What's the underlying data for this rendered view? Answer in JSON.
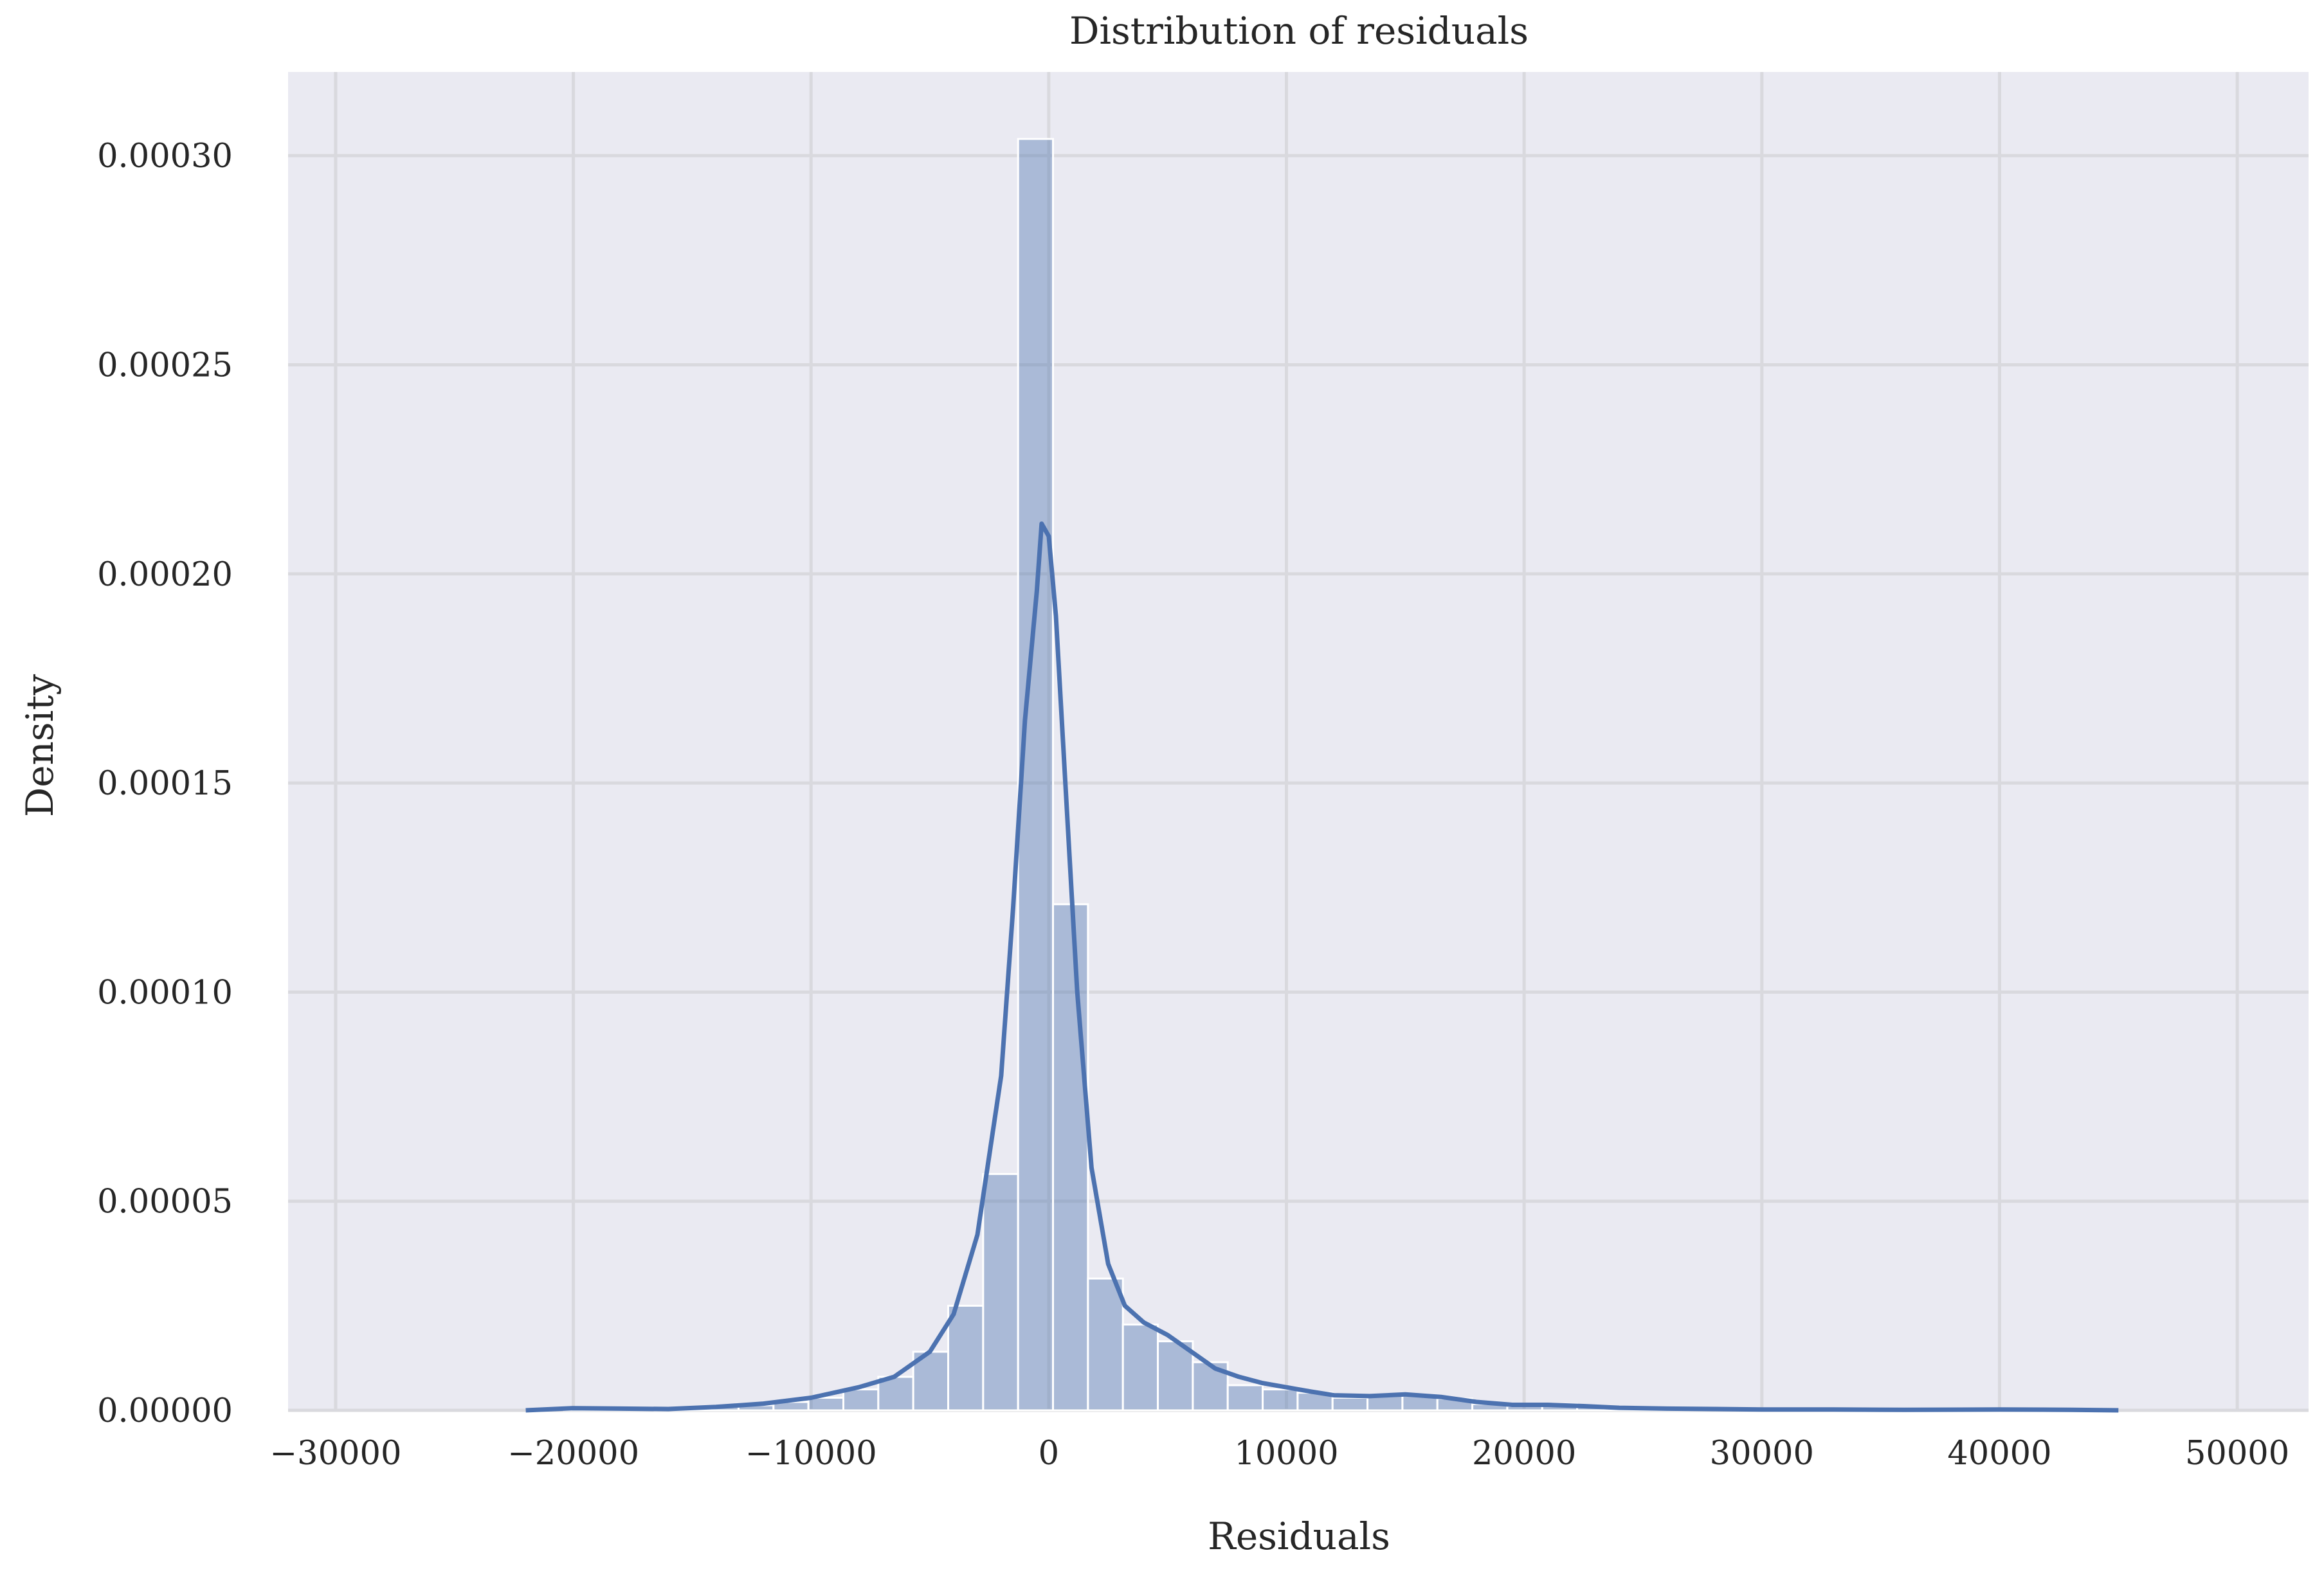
{
  "chart_data": {
    "type": "histogram",
    "title": "Distribution of residuals",
    "xlabel": "Residuals",
    "ylabel": "Density",
    "xlim": [
      -32000,
      53000
    ],
    "ylim": [
      0,
      0.00032
    ],
    "x_ticks": [
      -30000,
      -20000,
      -10000,
      0,
      10000,
      20000,
      30000,
      40000,
      50000
    ],
    "x_tick_labels": [
      "−30000",
      "−20000",
      "−10000",
      "0",
      "10000",
      "20000",
      "30000",
      "40000",
      "50000"
    ],
    "y_ticks": [
      0,
      5e-05,
      0.0001,
      0.00015,
      0.0002,
      0.00025,
      0.0003
    ],
    "y_tick_labels": [
      "0.00000",
      "0.00005",
      "0.00010",
      "0.00015",
      "0.00020",
      "0.00025",
      "0.00030"
    ],
    "grid": true,
    "background": "#eaeaf2",
    "grid_color": "#d9d9de",
    "bar_color": "#4c72b0",
    "bar_opacity": 0.4,
    "line_color": "#4c72b0",
    "bins": [
      {
        "x0": -20400,
        "x1": -18930,
        "density": 5e-07
      },
      {
        "x0": -18930,
        "x1": -17460,
        "density": 4e-07
      },
      {
        "x0": -17460,
        "x1": -15990,
        "density": 3e-07
      },
      {
        "x0": -15990,
        "x1": -14520,
        "density": 5e-07
      },
      {
        "x0": -14520,
        "x1": -13050,
        "density": 8e-07
      },
      {
        "x0": -13050,
        "x1": -11580,
        "density": 1.2e-06
      },
      {
        "x0": -11580,
        "x1": -10110,
        "density": 2e-06
      },
      {
        "x0": -10110,
        "x1": -8640,
        "density": 3e-06
      },
      {
        "x0": -8640,
        "x1": -7170,
        "density": 5e-06
      },
      {
        "x0": -7170,
        "x1": -5700,
        "density": 8e-06
      },
      {
        "x0": -5700,
        "x1": -4230,
        "density": 1.4e-05
      },
      {
        "x0": -4230,
        "x1": -2760,
        "density": 2.5e-05
      },
      {
        "x0": -2760,
        "x1": -1290,
        "density": 5.65e-05
      },
      {
        "x0": -1290,
        "x1": 180,
        "density": 0.000304
      },
      {
        "x0": 180,
        "x1": 1650,
        "density": 0.000121
      },
      {
        "x0": 1650,
        "x1": 3120,
        "density": 3.15e-05
      },
      {
        "x0": 3120,
        "x1": 4590,
        "density": 2.05e-05
      },
      {
        "x0": 4590,
        "x1": 6060,
        "density": 1.65e-05
      },
      {
        "x0": 6060,
        "x1": 7530,
        "density": 1.15e-05
      },
      {
        "x0": 7530,
        "x1": 9000,
        "density": 6e-06
      },
      {
        "x0": 9000,
        "x1": 10470,
        "density": 5e-06
      },
      {
        "x0": 10470,
        "x1": 11940,
        "density": 4.2e-06
      },
      {
        "x0": 11940,
        "x1": 13410,
        "density": 3e-06
      },
      {
        "x0": 13410,
        "x1": 14880,
        "density": 3.5e-06
      },
      {
        "x0": 14880,
        "x1": 16350,
        "density": 3.5e-06
      },
      {
        "x0": 16350,
        "x1": 17820,
        "density": 2.8e-06
      },
      {
        "x0": 17820,
        "x1": 19290,
        "density": 1.5e-06
      },
      {
        "x0": 19290,
        "x1": 20760,
        "density": 1e-06
      },
      {
        "x0": 20760,
        "x1": 22230,
        "density": 1.5e-06
      },
      {
        "x0": 22230,
        "x1": 23700,
        "density": 8e-07
      },
      {
        "x0": 23700,
        "x1": 25170,
        "density": 6e-07
      },
      {
        "x0": 25170,
        "x1": 26640,
        "density": 5e-07
      },
      {
        "x0": 26640,
        "x1": 28110,
        "density": 4e-07
      },
      {
        "x0": 28110,
        "x1": 29580,
        "density": 3e-07
      },
      {
        "x0": 29580,
        "x1": 31050,
        "density": 3e-07
      },
      {
        "x0": 31050,
        "x1": 32520,
        "density": 2e-07
      },
      {
        "x0": 32520,
        "x1": 33990,
        "density": 2e-07
      }
    ],
    "kde": [
      {
        "x": -22000,
        "y": 0.0
      },
      {
        "x": -20000,
        "y": 5e-07
      },
      {
        "x": -18000,
        "y": 4e-07
      },
      {
        "x": -16000,
        "y": 3e-07
      },
      {
        "x": -14000,
        "y": 8e-07
      },
      {
        "x": -12000,
        "y": 1.6e-06
      },
      {
        "x": -10000,
        "y": 3e-06
      },
      {
        "x": -8000,
        "y": 5.5e-06
      },
      {
        "x": -6500,
        "y": 8e-06
      },
      {
        "x": -5000,
        "y": 1.4e-05
      },
      {
        "x": -4000,
        "y": 2.3e-05
      },
      {
        "x": -3000,
        "y": 4.2e-05
      },
      {
        "x": -2000,
        "y": 8e-05
      },
      {
        "x": -1500,
        "y": 0.00012
      },
      {
        "x": -1000,
        "y": 0.000165
      },
      {
        "x": -500,
        "y": 0.000196
      },
      {
        "x": -300,
        "y": 0.000212
      },
      {
        "x": 0,
        "y": 0.000209
      },
      {
        "x": 300,
        "y": 0.00019
      },
      {
        "x": 700,
        "y": 0.00015
      },
      {
        "x": 1200,
        "y": 0.0001
      },
      {
        "x": 1800,
        "y": 5.8e-05
      },
      {
        "x": 2500,
        "y": 3.5e-05
      },
      {
        "x": 3200,
        "y": 2.5e-05
      },
      {
        "x": 4000,
        "y": 2.1e-05
      },
      {
        "x": 5000,
        "y": 1.8e-05
      },
      {
        "x": 6000,
        "y": 1.4e-05
      },
      {
        "x": 7000,
        "y": 1e-05
      },
      {
        "x": 8000,
        "y": 8e-06
      },
      {
        "x": 9000,
        "y": 6.5e-06
      },
      {
        "x": 10000,
        "y": 5.5e-06
      },
      {
        "x": 11000,
        "y": 4.5e-06
      },
      {
        "x": 12000,
        "y": 3.6e-06
      },
      {
        "x": 13500,
        "y": 3.4e-06
      },
      {
        "x": 15000,
        "y": 3.8e-06
      },
      {
        "x": 16500,
        "y": 3.2e-06
      },
      {
        "x": 18000,
        "y": 2e-06
      },
      {
        "x": 19500,
        "y": 1.3e-06
      },
      {
        "x": 21000,
        "y": 1.3e-06
      },
      {
        "x": 22500,
        "y": 1e-06
      },
      {
        "x": 24000,
        "y": 6e-07
      },
      {
        "x": 26000,
        "y": 4e-07
      },
      {
        "x": 28000,
        "y": 3e-07
      },
      {
        "x": 30000,
        "y": 2e-07
      },
      {
        "x": 33000,
        "y": 2e-07
      },
      {
        "x": 36000,
        "y": 1e-07
      },
      {
        "x": 40000,
        "y": 2e-07
      },
      {
        "x": 43000,
        "y": 1e-07
      },
      {
        "x": 45000,
        "y": 0.0
      }
    ]
  }
}
